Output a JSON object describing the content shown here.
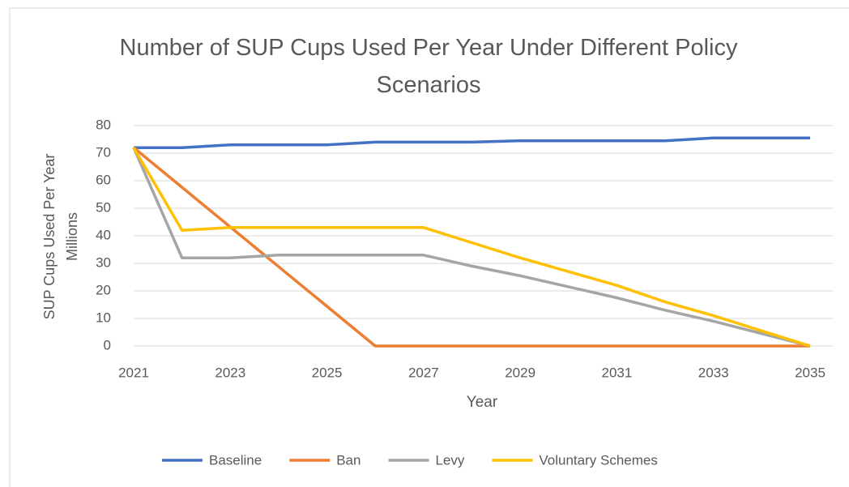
{
  "chart_data": {
    "type": "line",
    "title": "Number of SUP Cups Used Per Year Under Different Policy Scenarios",
    "x_label": "Year",
    "y_label": "SUP Cups Used Per Year",
    "y_units": "Millions",
    "x": [
      2021,
      2022,
      2023,
      2024,
      2025,
      2026,
      2027,
      2028,
      2029,
      2030,
      2031,
      2032,
      2033,
      2034,
      2035
    ],
    "series": [
      {
        "name": "Baseline",
        "color": "#4472c4",
        "values": [
          72,
          72,
          73,
          73,
          73,
          74,
          74,
          74,
          74.5,
          74.5,
          74.5,
          74.5,
          75.5,
          75.5,
          75.5
        ]
      },
      {
        "name": "Ban",
        "color": "#ed7d31",
        "values": [
          72,
          57.6,
          43.2,
          28.8,
          14.4,
          0,
          0,
          0,
          0,
          0,
          0,
          0,
          0,
          0,
          0
        ]
      },
      {
        "name": "Levy",
        "color": "#a5a5a5",
        "values": [
          72,
          32,
          32,
          33,
          33,
          33,
          33,
          29,
          25.5,
          21.5,
          17.5,
          13,
          9,
          4.5,
          0
        ]
      },
      {
        "name": "Voluntary Schemes",
        "color": "#ffc000",
        "values": [
          72,
          42,
          43,
          43,
          43,
          43,
          43,
          37.5,
          32,
          27,
          22,
          16,
          11,
          5.5,
          0
        ]
      }
    ],
    "xlim": [
      2021,
      2035
    ],
    "xticks": [
      2021,
      2023,
      2025,
      2027,
      2029,
      2031,
      2033,
      2035
    ],
    "ylim": [
      0,
      80
    ],
    "yticks": [
      0,
      10,
      20,
      30,
      40,
      50,
      60,
      70,
      80
    ],
    "grid": true,
    "legend": "bottom"
  }
}
